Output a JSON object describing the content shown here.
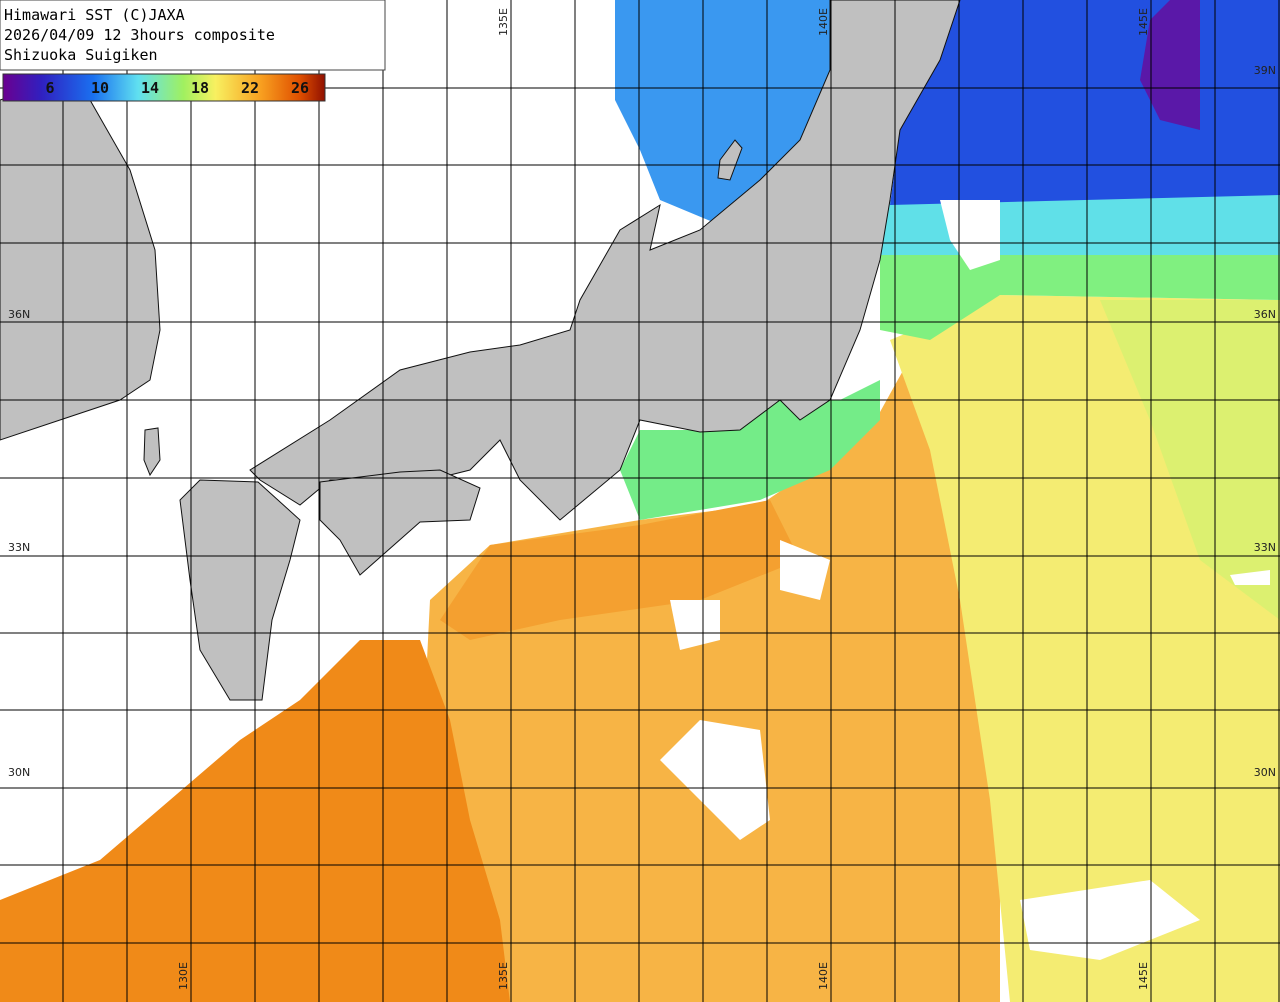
{
  "header": {
    "lines": [
      "Himawari SST (C)JAXA",
      "2026/04/09 12 3hours composite",
      "Shizuoka Suigiken"
    ]
  },
  "legend": {
    "ticks": [
      6,
      10,
      14,
      18,
      22,
      26
    ]
  },
  "grid": {
    "lat_labels": [
      "39N",
      "36N",
      "33N",
      "30N"
    ],
    "lon_labels": [
      "130E",
      "135E",
      "140E",
      "145E"
    ]
  }
}
